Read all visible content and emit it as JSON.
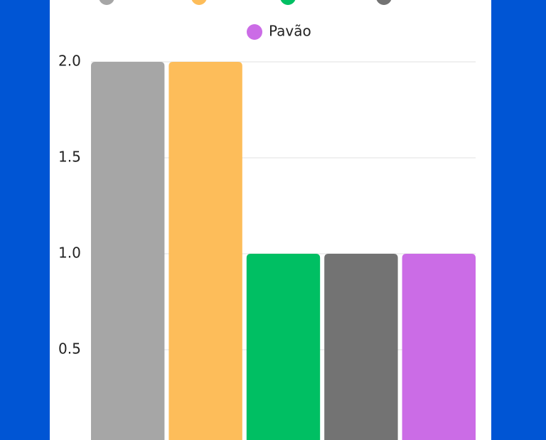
{
  "chart_data": {
    "type": "bar",
    "categories": [
      null
    ],
    "series": [
      {
        "name": null,
        "color": "#a6a6a6",
        "values": [
          2
        ]
      },
      {
        "name": null,
        "color": "#fdbd5a",
        "values": [
          2
        ]
      },
      {
        "name": null,
        "color": "#00bf63",
        "values": [
          1
        ]
      },
      {
        "name": null,
        "color": "#737373",
        "values": [
          1
        ]
      },
      {
        "name": "Pavão",
        "color": "#cb6ce6",
        "values": [
          1
        ]
      }
    ],
    "ylim": [
      0,
      2
    ],
    "yticks": [
      {
        "value": 0.5,
        "label": "0.5"
      },
      {
        "value": 1,
        "label": "1.0"
      },
      {
        "value": 1.5,
        "label": "1.5"
      },
      {
        "value": 2,
        "label": "2.0"
      }
    ],
    "grid": true
  }
}
